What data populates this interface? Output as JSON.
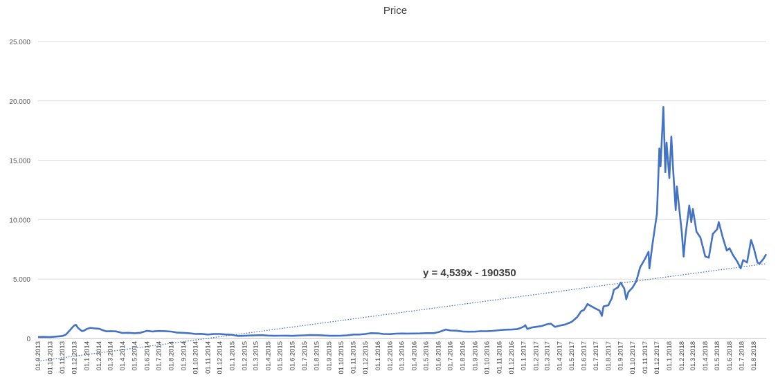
{
  "chart_data": {
    "type": "line",
    "title": "Price",
    "xlabel": "",
    "ylabel": "",
    "ylim": [
      0,
      25000
    ],
    "yticks": [
      0,
      5000,
      10000,
      15000,
      20000,
      25000
    ],
    "ytick_labels": [
      "0",
      "5.000",
      "10.000",
      "15.000",
      "20.000",
      "25.000"
    ],
    "grid": "horizontal",
    "legend": "none",
    "x_tick_labels": [
      "01.9.2013",
      "01.10.2013",
      "01.11.2013",
      "01.12.2013",
      "01.1.2014",
      "01.2.2014",
      "01.3.2014",
      "01.4.2014",
      "01.5.2014",
      "01.6.2014",
      "01.7.2014",
      "01.8.2014",
      "01.9.2014",
      "01.10.2014",
      "01.11.2014",
      "01.12.2014",
      "01.1.2015",
      "01.2.2015",
      "01.3.2015",
      "01.4.2015",
      "01.5.2015",
      "01.6.2015",
      "01.7.2015",
      "01.8.2015",
      "01.9.2015",
      "01.10.2015",
      "01.11.2015",
      "01.12.2015",
      "01.1.2016",
      "01.2.2016",
      "01.3.2016",
      "01.4.2016",
      "01.5.2016",
      "01.6.2016",
      "01.7.2016",
      "01.8.2016",
      "01.9.2016",
      "01.10.2016",
      "01.11.2016",
      "01.12.2016",
      "01.1.2017",
      "01.2.2017",
      "01.3.2017",
      "01.4.2017",
      "01.5.2017",
      "01.6.2017",
      "01.7.2017",
      "01.8.2017",
      "01.9.2017",
      "01.10.2017",
      "01.11.2017",
      "01.12.2017",
      "01.1.2018",
      "01.2.2018",
      "01.3.2018",
      "01.4.2018",
      "01.5.2018",
      "01.6.2018",
      "01.7.2018",
      "01.8.2018"
    ],
    "series": [
      {
        "color": "#4472c4",
        "points": [
          [
            "01.9.2013",
            130
          ],
          [
            "15.9.2013",
            135
          ],
          [
            "01.10.2013",
            125
          ],
          [
            "15.10.2013",
            160
          ],
          [
            "01.11.2013",
            210
          ],
          [
            "10.11.2013",
            330
          ],
          [
            "20.11.2013",
            700
          ],
          [
            "25.11.2013",
            900
          ],
          [
            "01.12.2013",
            1100
          ],
          [
            "05.12.2013",
            1150
          ],
          [
            "10.12.2013",
            900
          ],
          [
            "15.12.2013",
            750
          ],
          [
            "20.12.2013",
            620
          ],
          [
            "25.12.2013",
            660
          ],
          [
            "01.1.2014",
            800
          ],
          [
            "10.1.2014",
            900
          ],
          [
            "20.1.2014",
            850
          ],
          [
            "01.2.2014",
            820
          ],
          [
            "10.2.2014",
            700
          ],
          [
            "20.2.2014",
            600
          ],
          [
            "01.3.2014",
            620
          ],
          [
            "15.3.2014",
            600
          ],
          [
            "01.4.2014",
            460
          ],
          [
            "15.4.2014",
            480
          ],
          [
            "01.5.2014",
            440
          ],
          [
            "15.5.2014",
            480
          ],
          [
            "01.6.2014",
            640
          ],
          [
            "15.6.2014",
            590
          ],
          [
            "01.7.2014",
            630
          ],
          [
            "15.7.2014",
            620
          ],
          [
            "01.8.2014",
            580
          ],
          [
            "15.8.2014",
            500
          ],
          [
            "01.9.2014",
            470
          ],
          [
            "15.9.2014",
            440
          ],
          [
            "01.10.2014",
            380
          ],
          [
            "15.10.2014",
            390
          ],
          [
            "01.11.2014",
            330
          ],
          [
            "15.11.2014",
            380
          ],
          [
            "01.12.2014",
            380
          ],
          [
            "15.12.2014",
            340
          ],
          [
            "01.1.2015",
            310
          ],
          [
            "15.1.2015",
            210
          ],
          [
            "01.2.2015",
            230
          ],
          [
            "15.2.2015",
            250
          ],
          [
            "01.3.2015",
            270
          ],
          [
            "15.3.2015",
            280
          ],
          [
            "01.4.2015",
            245
          ],
          [
            "15.4.2015",
            225
          ],
          [
            "01.5.2015",
            235
          ],
          [
            "15.5.2015",
            237
          ],
          [
            "01.6.2015",
            222
          ],
          [
            "15.6.2015",
            245
          ],
          [
            "01.7.2015",
            260
          ],
          [
            "15.7.2015",
            285
          ],
          [
            "01.8.2015",
            280
          ],
          [
            "15.8.2015",
            255
          ],
          [
            "01.9.2015",
            230
          ],
          [
            "15.9.2015",
            230
          ],
          [
            "01.10.2015",
            240
          ],
          [
            "15.10.2015",
            260
          ],
          [
            "01.11.2015",
            330
          ],
          [
            "15.11.2015",
            330
          ],
          [
            "01.12.2015",
            380
          ],
          [
            "15.12.2015",
            450
          ],
          [
            "01.1.2016",
            430
          ],
          [
            "15.1.2016",
            380
          ],
          [
            "01.2.2016",
            370
          ],
          [
            "15.2.2016",
            410
          ],
          [
            "01.3.2016",
            420
          ],
          [
            "15.3.2016",
            415
          ],
          [
            "01.4.2016",
            417
          ],
          [
            "15.4.2016",
            425
          ],
          [
            "01.5.2016",
            450
          ],
          [
            "20.5.2016",
            450
          ],
          [
            "01.6.2016",
            530
          ],
          [
            "15.6.2016",
            700
          ],
          [
            "20.6.2016",
            750
          ],
          [
            "01.7.2016",
            670
          ],
          [
            "15.7.2016",
            660
          ],
          [
            "01.8.2016",
            590
          ],
          [
            "15.8.2016",
            570
          ],
          [
            "01.9.2016",
            575
          ],
          [
            "15.9.2016",
            610
          ],
          [
            "01.10.2016",
            610
          ],
          [
            "15.10.2016",
            640
          ],
          [
            "01.11.2016",
            700
          ],
          [
            "15.11.2016",
            740
          ],
          [
            "01.12.2016",
            750
          ],
          [
            "15.12.2016",
            780
          ],
          [
            "25.12.2016",
            900
          ],
          [
            "01.1.2017",
            1000
          ],
          [
            "05.1.2017",
            1120
          ],
          [
            "10.1.2017",
            800
          ],
          [
            "20.1.2017",
            920
          ],
          [
            "01.2.2017",
            980
          ],
          [
            "15.2.2017",
            1050
          ],
          [
            "01.3.2017",
            1200
          ],
          [
            "10.3.2017",
            1250
          ],
          [
            "20.3.2017",
            980
          ],
          [
            "01.4.2017",
            1080
          ],
          [
            "15.4.2017",
            1180
          ],
          [
            "01.5.2017",
            1400
          ],
          [
            "15.5.2017",
            1800
          ],
          [
            "25.5.2017",
            2300
          ],
          [
            "01.6.2017",
            2400
          ],
          [
            "10.6.2017",
            2900
          ],
          [
            "20.6.2017",
            2700
          ],
          [
            "01.7.2017",
            2500
          ],
          [
            "10.7.2017",
            2350
          ],
          [
            "16.7.2017",
            1900
          ],
          [
            "20.7.2017",
            2700
          ],
          [
            "01.8.2017",
            2800
          ],
          [
            "10.8.2017",
            3400
          ],
          [
            "15.8.2017",
            4100
          ],
          [
            "25.8.2017",
            4300
          ],
          [
            "01.9.2017",
            4700
          ],
          [
            "10.9.2017",
            4200
          ],
          [
            "15.9.2017",
            3300
          ],
          [
            "20.9.2017",
            3900
          ],
          [
            "01.10.2017",
            4300
          ],
          [
            "10.10.2017",
            4800
          ],
          [
            "20.10.2017",
            6000
          ],
          [
            "01.11.2017",
            6700
          ],
          [
            "10.11.2017",
            7300
          ],
          [
            "12.11.2017",
            5900
          ],
          [
            "20.11.2017",
            8000
          ],
          [
            "01.12.2017",
            10500
          ],
          [
            "07.12.2017",
            16000
          ],
          [
            "10.12.2017",
            14500
          ],
          [
            "17.12.2017",
            19500
          ],
          [
            "22.12.2017",
            14000
          ],
          [
            "25.12.2017",
            16500
          ],
          [
            "01.1.2018",
            13500
          ],
          [
            "06.1.2018",
            17000
          ],
          [
            "10.1.2018",
            14500
          ],
          [
            "17.1.2018",
            10800
          ],
          [
            "20.1.2018",
            12800
          ],
          [
            "01.2.2018",
            9000
          ],
          [
            "06.2.2018",
            6900
          ],
          [
            "10.2.2018",
            8500
          ],
          [
            "20.2.2018",
            11200
          ],
          [
            "25.2.2018",
            9800
          ],
          [
            "01.3.2018",
            10900
          ],
          [
            "10.3.2018",
            9000
          ],
          [
            "20.3.2018",
            8500
          ],
          [
            "01.4.2018",
            6900
          ],
          [
            "10.4.2018",
            6800
          ],
          [
            "20.4.2018",
            8800
          ],
          [
            "01.5.2018",
            9200
          ],
          [
            "05.5.2018",
            9800
          ],
          [
            "15.5.2018",
            8500
          ],
          [
            "25.5.2018",
            7400
          ],
          [
            "01.6.2018",
            7600
          ],
          [
            "10.6.2018",
            7000
          ],
          [
            "20.6.2018",
            6500
          ],
          [
            "29.6.2018",
            5900
          ],
          [
            "05.7.2018",
            6600
          ],
          [
            "15.7.2018",
            6400
          ],
          [
            "25.7.2018",
            8300
          ],
          [
            "01.8.2018",
            7600
          ],
          [
            "10.8.2018",
            6400
          ],
          [
            "15.8.2018",
            6300
          ],
          [
            "25.8.2018",
            6700
          ],
          [
            "01.9.2018",
            7100
          ]
        ]
      }
    ],
    "trendline": {
      "type": "linear",
      "color": "#4472c4",
      "style": "dotted",
      "label": "y = 4,539x - 190350",
      "approx_start": [
        "01.9.2013",
        -1900
      ],
      "approx_end": [
        "01.9.2018",
        6300
      ]
    }
  }
}
